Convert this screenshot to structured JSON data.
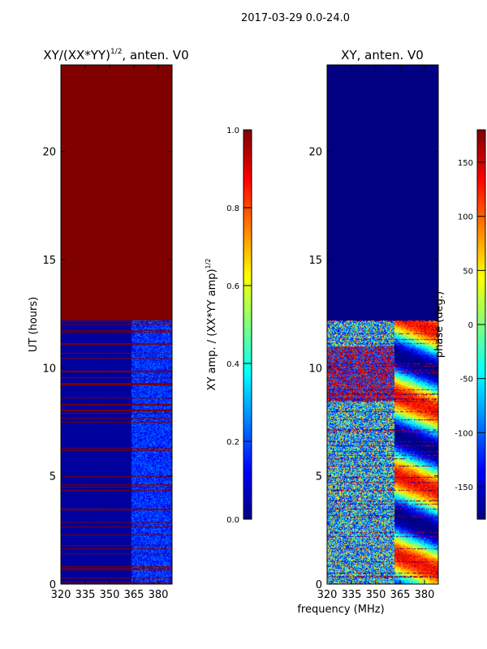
{
  "suptitle": "2017-03-29 0.0-24.0",
  "xlabel_shared": "frequency (MHz)",
  "chart_data": [
    {
      "type": "heatmap",
      "title_main": "XY/(XX*YY)",
      "title_sup": "1/2",
      "title_tail": ", anten. V0",
      "ylabel": "UT (hours)",
      "xlim": [
        320,
        388.5
      ],
      "ylim": [
        0,
        24
      ],
      "xticks": [
        "320",
        "335",
        "350",
        "365",
        "380"
      ],
      "yticks": [
        "0",
        "5",
        "10",
        "15",
        "20"
      ],
      "colorbar": {
        "label_main": "XY amp. / (XX*YY amp)",
        "label_sup": "1/2",
        "range": [
          0,
          1
        ],
        "ticks": [
          "0.0",
          "0.2",
          "0.4",
          "0.6",
          "0.8",
          "1.0"
        ],
        "colormap": "jet"
      },
      "flagged_above_hours": 12.2
    },
    {
      "type": "heatmap",
      "title": "XY, anten. V0",
      "xlim": [
        320,
        388.5
      ],
      "ylim": [
        0,
        24
      ],
      "xticks": [
        "320",
        "335",
        "350",
        "365",
        "380"
      ],
      "yticks": [
        "0",
        "5",
        "10",
        "15",
        "20"
      ],
      "colorbar": {
        "label": "phase (deg.)",
        "range": [
          -180,
          180
        ],
        "ticks": [
          "-150",
          "-100",
          "-50",
          "0",
          "50",
          "100",
          "150"
        ],
        "colormap": "jet"
      },
      "flagged_above_hours": 12.2
    }
  ]
}
